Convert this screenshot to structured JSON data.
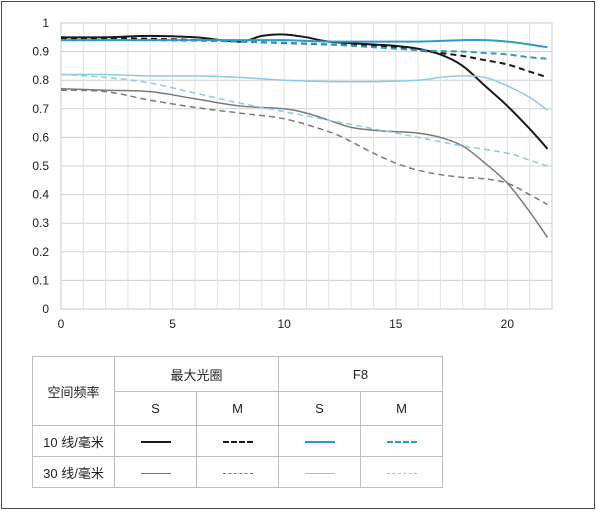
{
  "chart_data": {
    "type": "line",
    "xlim": [
      0,
      22
    ],
    "ylim": [
      0,
      1
    ],
    "x_ticks": [
      "0",
      "5",
      "10",
      "15",
      "20"
    ],
    "y_ticks": [
      "0",
      "0.1",
      "0.2",
      "0.3",
      "0.4",
      "0.5",
      "0.6",
      "0.7",
      "0.8",
      "0.9",
      "1"
    ],
    "grid": true,
    "series": [
      {
        "name": "10 线/毫米 最大光圈 S",
        "color": "#1a1a1a",
        "dash": "solid",
        "width": 2,
        "x": [
          0,
          2,
          4,
          6,
          8,
          9,
          10,
          11,
          12,
          14,
          15,
          16,
          17,
          18,
          19,
          20,
          21,
          21.8
        ],
        "y": [
          0.95,
          0.95,
          0.955,
          0.95,
          0.935,
          0.955,
          0.96,
          0.95,
          0.935,
          0.925,
          0.92,
          0.91,
          0.89,
          0.85,
          0.78,
          0.71,
          0.63,
          0.56
        ]
      },
      {
        "name": "10 线/毫米 最大光圈 M",
        "color": "#1a1a1a",
        "dash": "dashed",
        "width": 2,
        "x": [
          0,
          4,
          8,
          10,
          12,
          14,
          15,
          16,
          17,
          18,
          19,
          20,
          21,
          21.8
        ],
        "y": [
          0.945,
          0.945,
          0.935,
          0.93,
          0.925,
          0.92,
          0.915,
          0.905,
          0.895,
          0.885,
          0.87,
          0.855,
          0.83,
          0.81
        ]
      },
      {
        "name": "10 线/毫米 F8 S",
        "color": "#2e9ac7",
        "dash": "solid",
        "width": 2,
        "x": [
          0,
          4,
          8,
          10,
          12,
          14,
          16,
          18,
          19,
          20,
          21,
          21.8
        ],
        "y": [
          0.94,
          0.94,
          0.94,
          0.94,
          0.935,
          0.935,
          0.935,
          0.94,
          0.94,
          0.935,
          0.925,
          0.915
        ]
      },
      {
        "name": "10 线/毫米 F8 M",
        "color": "#2e9ac7",
        "dash": "dashed",
        "width": 2,
        "x": [
          0,
          4,
          8,
          12,
          16,
          18,
          19,
          20,
          21,
          21.8
        ],
        "y": [
          0.94,
          0.94,
          0.935,
          0.925,
          0.905,
          0.9,
          0.895,
          0.89,
          0.88,
          0.875
        ]
      },
      {
        "name": "30 线/毫米 最大光圈 S",
        "color": "#7a7a7a",
        "dash": "solid",
        "width": 1.5,
        "x": [
          0,
          2,
          4,
          6,
          8,
          10,
          11,
          12,
          13,
          14,
          15,
          16,
          17,
          18,
          19,
          20,
          21,
          21.8
        ],
        "y": [
          0.77,
          0.765,
          0.76,
          0.735,
          0.71,
          0.7,
          0.685,
          0.66,
          0.635,
          0.625,
          0.62,
          0.615,
          0.6,
          0.57,
          0.51,
          0.44,
          0.34,
          0.25
        ]
      },
      {
        "name": "30 线/毫米 最大光圈 M",
        "color": "#7a7a7a",
        "dash": "dashed",
        "width": 1.5,
        "x": [
          0,
          2,
          4,
          6,
          8,
          10,
          12,
          13,
          14,
          15,
          16,
          17,
          18,
          19,
          20,
          21,
          21.8
        ],
        "y": [
          0.765,
          0.76,
          0.73,
          0.705,
          0.685,
          0.665,
          0.62,
          0.585,
          0.545,
          0.51,
          0.485,
          0.47,
          0.46,
          0.455,
          0.44,
          0.4,
          0.365
        ]
      },
      {
        "name": "30 线/毫米 F8 S",
        "color": "#8ccbe6",
        "dash": "solid",
        "width": 1.5,
        "x": [
          0,
          2,
          4,
          6,
          8,
          10,
          12,
          14,
          16,
          17,
          18,
          19,
          20,
          21,
          21.8
        ],
        "y": [
          0.82,
          0.82,
          0.815,
          0.815,
          0.81,
          0.8,
          0.795,
          0.795,
          0.8,
          0.81,
          0.815,
          0.81,
          0.78,
          0.74,
          0.695
        ]
      },
      {
        "name": "30 线/毫米 F8 M",
        "color": "#8ccbe6",
        "dash": "dashed",
        "width": 1.5,
        "x": [
          0,
          2,
          4,
          6,
          8,
          10,
          12,
          14,
          16,
          18,
          20,
          21,
          21.8
        ],
        "y": [
          0.82,
          0.81,
          0.79,
          0.755,
          0.72,
          0.69,
          0.66,
          0.63,
          0.6,
          0.57,
          0.545,
          0.52,
          0.5
        ]
      }
    ]
  },
  "legend": {
    "row_header": "空间频率",
    "group_max": "最大光圈",
    "group_f8": "F8",
    "sub_s": "S",
    "sub_m": "M",
    "row_10": "10 线/毫米",
    "row_30": "30 线/毫米",
    "colors": {
      "black": "#1a1a1a",
      "gray": "#7a7a7a",
      "blue": "#2e9ac7",
      "light_blue": "#8ccbe6"
    }
  }
}
